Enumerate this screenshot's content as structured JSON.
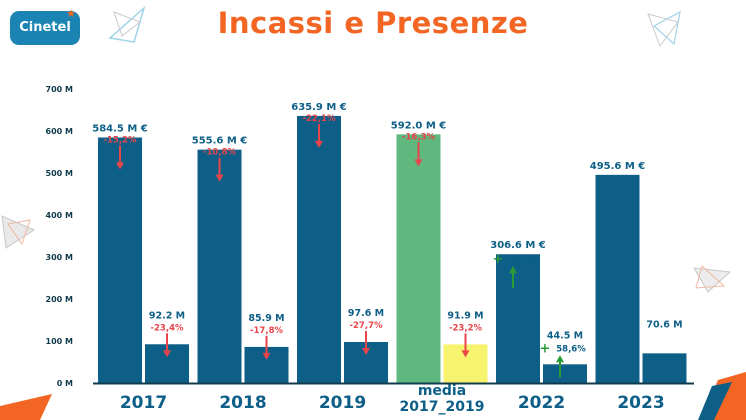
{
  "logo": {
    "text": "Cinetel"
  },
  "header": {
    "title": "Incassi e Presenze"
  },
  "colors": {
    "primary": "#0d5f87",
    "accent": "#f26522",
    "media_incassi": "#5fb87e",
    "media_presenze": "#f7f36e",
    "down_arrow": "#e8454b",
    "up_arrow": "#2a9a35",
    "axis": "#103b4d"
  },
  "chart_data": {
    "type": "bar",
    "title": "Incassi e Presenze",
    "categories": [
      "2017",
      "2018",
      "2019",
      "media\n2017_2019",
      "2022",
      "2023"
    ],
    "ylim": [
      0,
      700
    ],
    "yticks": [
      0,
      100,
      200,
      300,
      400,
      500,
      600,
      700
    ],
    "ytick_labels": [
      "0 M",
      "100 M",
      "200 M",
      "300 M",
      "400 M",
      "500 M",
      "600 M",
      "700 M"
    ],
    "grid": false,
    "legend": "none",
    "series": [
      {
        "values": [
          584.5,
          555.6,
          635.9,
          592.0,
          306.6,
          495.6
        ],
        "labels": [
          "584.5 M €",
          "555.6 M €",
          "635.9 M €",
          "592.0 M €",
          "306.6 M €",
          "495.6 M €"
        ],
        "changes": [
          "-15,2%",
          "-10,8%",
          "-22,1%",
          "-16,3%",
          "61,6%",
          ""
        ],
        "directions": [
          "down",
          "down",
          "down",
          "down",
          "up",
          ""
        ]
      },
      {
        "values": [
          92.2,
          85.9,
          97.6,
          91.9,
          44.5,
          70.6
        ],
        "labels": [
          "92.2 M",
          "85.9 M",
          "97.6 M",
          "91.9 M",
          "44.5 M",
          "70.6 M"
        ],
        "changes": [
          "-23,4%",
          "-17,8%",
          "-27,7%",
          "-23,2%",
          "58,6%",
          ""
        ],
        "directions": [
          "down",
          "down",
          "down",
          "down",
          "up",
          ""
        ]
      }
    ]
  }
}
